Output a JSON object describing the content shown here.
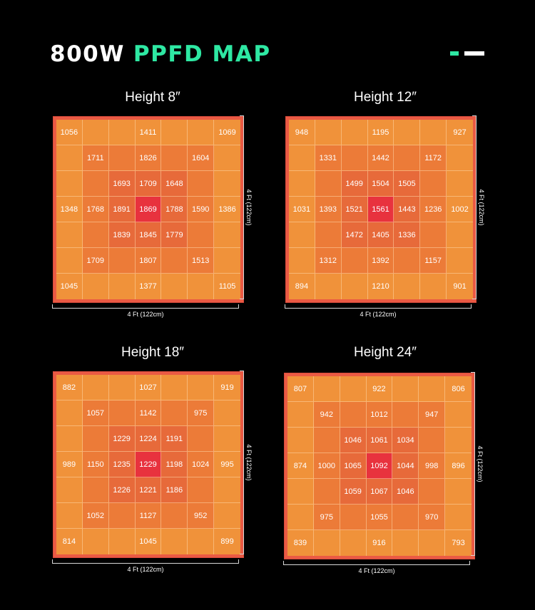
{
  "header": {
    "title_part1": "800W",
    "title_part2": "PPFD MAP"
  },
  "colors": {
    "accent": "#2ee8a3",
    "cell_base": "#f0923a",
    "cell_mid": "#ec7b38",
    "cell_high": "#e76a3a",
    "cell_peak": "#e8323e"
  },
  "chart_data": [
    {
      "type": "heatmap",
      "title": "Height 8″",
      "xlabel": "4 Ft (122cm)",
      "ylabel": "4 Ft (122cm)",
      "rows": [
        [
          1056,
          null,
          null,
          1411,
          null,
          null,
          1069
        ],
        [
          null,
          1711,
          null,
          1826,
          null,
          1604,
          null
        ],
        [
          null,
          null,
          1693,
          1709,
          1648,
          null,
          null
        ],
        [
          1348,
          1768,
          1891,
          1869,
          1788,
          1590,
          1386
        ],
        [
          null,
          null,
          1839,
          1845,
          1779,
          null,
          null
        ],
        [
          null,
          1709,
          null,
          1807,
          null,
          1513,
          null
        ],
        [
          1045,
          null,
          null,
          1377,
          null,
          null,
          1105
        ]
      ]
    },
    {
      "type": "heatmap",
      "title": "Height 12″",
      "xlabel": "4 Ft (122cm)",
      "ylabel": "4 Ft (122cm)",
      "rows": [
        [
          948,
          null,
          null,
          1195,
          null,
          null,
          927
        ],
        [
          null,
          1331,
          null,
          1442,
          null,
          1172,
          null
        ],
        [
          null,
          null,
          1499,
          1504,
          1505,
          null,
          null
        ],
        [
          1031,
          1393,
          1521,
          1561,
          1443,
          1236,
          1002
        ],
        [
          null,
          null,
          1472,
          1405,
          1336,
          null,
          null
        ],
        [
          null,
          1312,
          null,
          1392,
          null,
          1157,
          null
        ],
        [
          894,
          null,
          null,
          1210,
          null,
          null,
          901
        ]
      ]
    },
    {
      "type": "heatmap",
      "title": "Height 18″",
      "xlabel": "4 Ft (122cm)",
      "ylabel": "4 Ft (122cm)",
      "rows": [
        [
          882,
          null,
          null,
          1027,
          null,
          null,
          919
        ],
        [
          null,
          1057,
          null,
          1142,
          null,
          975,
          null
        ],
        [
          null,
          null,
          1229,
          1224,
          1191,
          null,
          null
        ],
        [
          989,
          1150,
          1235,
          1229,
          1198,
          1024,
          995
        ],
        [
          null,
          null,
          1226,
          1221,
          1186,
          null,
          null
        ],
        [
          null,
          1052,
          null,
          1127,
          null,
          952,
          null
        ],
        [
          814,
          null,
          null,
          1045,
          null,
          null,
          899
        ]
      ]
    },
    {
      "type": "heatmap",
      "title": "Height 24″",
      "xlabel": "4 Ft (122cm)",
      "ylabel": "4 Ft (122cm)",
      "rows": [
        [
          807,
          null,
          null,
          922,
          null,
          null,
          806
        ],
        [
          null,
          942,
          null,
          1012,
          null,
          947,
          null
        ],
        [
          null,
          null,
          1046,
          1061,
          1034,
          null,
          null
        ],
        [
          874,
          1000,
          1065,
          1092,
          1044,
          998,
          896
        ],
        [
          null,
          null,
          1059,
          1067,
          1046,
          null,
          null
        ],
        [
          null,
          975,
          null,
          1055,
          null,
          970,
          null
        ],
        [
          839,
          null,
          null,
          916,
          null,
          null,
          793
        ]
      ]
    }
  ]
}
